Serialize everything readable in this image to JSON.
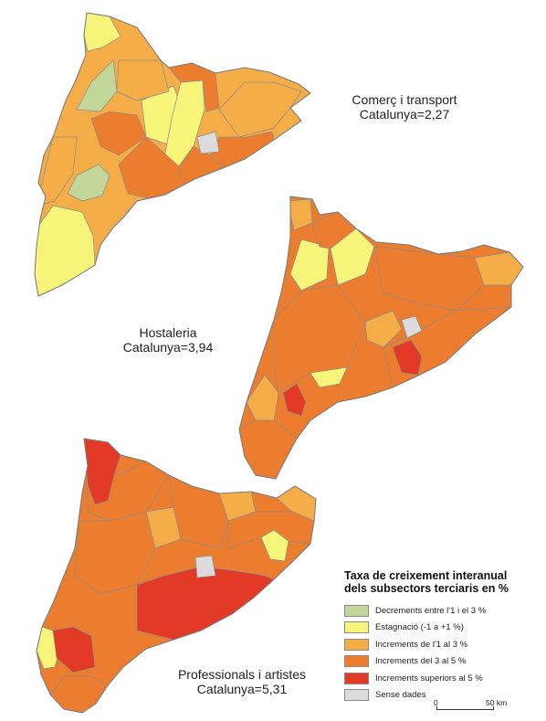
{
  "maps": [
    {
      "id": "comerc",
      "title": "Comerç i transport",
      "subtitle": "Catalunya=2,27",
      "regions": [
        {
          "class": "decrement"
        },
        {
          "class": "decrement"
        },
        {
          "class": "estagnacio"
        },
        {
          "class": "estagnacio"
        },
        {
          "class": "estagnacio"
        },
        {
          "class": "estagnacio"
        },
        {
          "class": "estagnacio"
        },
        {
          "class": "increment_1_3"
        },
        {
          "class": "increment_1_3"
        },
        {
          "class": "increment_1_3"
        },
        {
          "class": "increment_3_5"
        },
        {
          "class": "increment_3_5"
        },
        {
          "class": "increment_3_5"
        },
        {
          "class": "increment_3_5"
        },
        {
          "class": "increment_3_5"
        },
        {
          "class": "sense_dades"
        }
      ]
    },
    {
      "id": "hostaleria",
      "title": "Hostaleria",
      "subtitle": "Catalunya=3,94",
      "regions": [
        {
          "class": "estagnacio"
        },
        {
          "class": "estagnacio"
        },
        {
          "class": "estagnacio"
        },
        {
          "class": "increment_1_3"
        },
        {
          "class": "increment_1_3"
        },
        {
          "class": "increment_1_3"
        },
        {
          "class": "increment_1_3"
        },
        {
          "class": "increment_3_5"
        },
        {
          "class": "increment_3_5"
        },
        {
          "class": "increment_3_5"
        },
        {
          "class": "increment_3_5"
        },
        {
          "class": "increment_3_5"
        },
        {
          "class": "increment_superior_5"
        },
        {
          "class": "increment_superior_5"
        },
        {
          "class": "sense_dades"
        }
      ]
    },
    {
      "id": "professionals",
      "title": "Professionals i artistes",
      "subtitle": "Catalunya=5,31",
      "regions": [
        {
          "class": "estagnacio"
        },
        {
          "class": "estagnacio"
        },
        {
          "class": "increment_1_3"
        },
        {
          "class": "increment_1_3"
        },
        {
          "class": "increment_1_3"
        },
        {
          "class": "increment_3_5"
        },
        {
          "class": "increment_3_5"
        },
        {
          "class": "increment_3_5"
        },
        {
          "class": "increment_3_5"
        },
        {
          "class": "increment_3_5"
        },
        {
          "class": "increment_superior_5"
        },
        {
          "class": "increment_superior_5"
        },
        {
          "class": "increment_superior_5"
        },
        {
          "class": "sense_dades"
        }
      ]
    }
  ],
  "legend": {
    "title_line1": "Taxa de creixement interanual",
    "title_line2": "dels subsectors terciaris en %",
    "items": [
      {
        "key": "decrement",
        "label": "Decrements entre l'1 i el 3 %",
        "color": "#c4d79b"
      },
      {
        "key": "estagnacio",
        "label": "Estagnació (-1 a +1 %)",
        "color": "#f7f47a"
      },
      {
        "key": "increment_1_3",
        "label": "Increments de l'1 al 3 %",
        "color": "#f5ad48"
      },
      {
        "key": "increment_3_5",
        "label": "Increments del 3 al 5 %",
        "color": "#ec7d2f"
      },
      {
        "key": "increment_superior_5",
        "label": "Increments superiors al 5 %",
        "color": "#e23a26"
      },
      {
        "key": "sense_dades",
        "label": "Sense dades",
        "color": "#dcdcdc"
      }
    ]
  },
  "scale": {
    "start": "0",
    "end": "50 km"
  }
}
